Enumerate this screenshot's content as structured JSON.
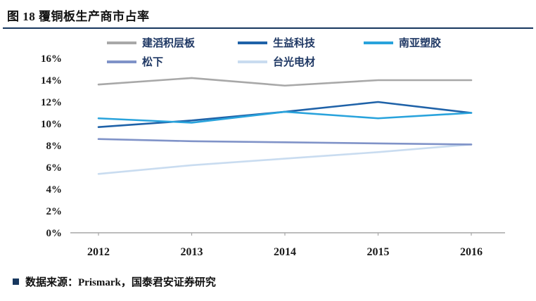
{
  "theme": {
    "accent": "#17375e",
    "axis_color": "#a6a6a6",
    "text_color": "#111111"
  },
  "header": {
    "title": "图 18 覆铜板生产商市占率"
  },
  "footer": {
    "source": "数据来源：Prismark，国泰君安证券研究"
  },
  "chart_data": {
    "type": "line",
    "title": "覆铜板生产商市占率",
    "x": [
      "2012",
      "2013",
      "2014",
      "2015",
      "2016"
    ],
    "series": [
      {
        "name": "建滔积层板",
        "color": "#a8a8a8",
        "values": [
          13.6,
          14.2,
          13.5,
          14.0,
          14.0
        ]
      },
      {
        "name": "生益科技",
        "color": "#1f62a8",
        "values": [
          9.7,
          10.3,
          11.1,
          12.0,
          11.0
        ]
      },
      {
        "name": "南亚塑胶",
        "color": "#29a3dc",
        "values": [
          10.5,
          10.1,
          11.1,
          10.5,
          11.0
        ]
      },
      {
        "name": "松下",
        "color": "#8093c8",
        "values": [
          8.6,
          8.4,
          8.3,
          8.2,
          8.1
        ]
      },
      {
        "name": "台光电材",
        "color": "#c9dcf0",
        "values": [
          5.4,
          6.2,
          6.8,
          7.4,
          8.1
        ]
      }
    ],
    "ylim": [
      0,
      16
    ],
    "ytick_step": 2,
    "ytick_suffix": "%",
    "legend_position": "top",
    "grid": false
  }
}
